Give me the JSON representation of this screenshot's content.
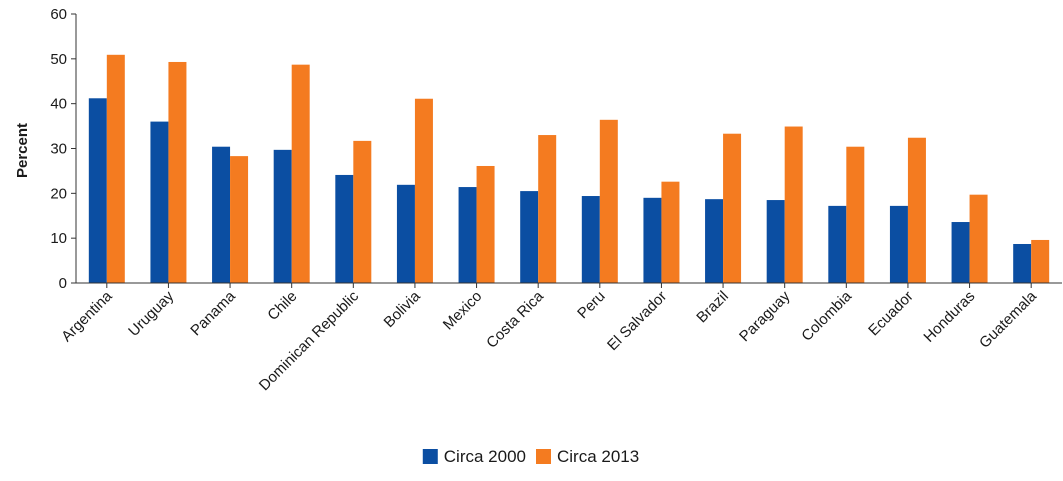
{
  "chart_data": {
    "type": "bar",
    "title": "",
    "xlabel": "",
    "ylabel": "Percent",
    "ylim": [
      0,
      60
    ],
    "yticks": [
      0,
      10,
      20,
      30,
      40,
      50,
      60
    ],
    "grid": false,
    "legend_position": "bottom",
    "categories": [
      "Argentina",
      "Uruguay",
      "Panama",
      "Chile",
      "Dominican Republic",
      "Bolivia",
      "Mexico",
      "Costa Rica",
      "Peru",
      "El Salvador",
      "Brazil",
      "Paraguay",
      "Colombia",
      "Ecuador",
      "Honduras",
      "Guatemala"
    ],
    "series": [
      {
        "name": "Circa 2000",
        "color": "#0b4ea2",
        "values": [
          41.2,
          36.0,
          30.4,
          29.7,
          24.1,
          21.9,
          21.4,
          20.5,
          19.4,
          19.0,
          18.7,
          18.5,
          17.2,
          17.2,
          13.6,
          8.7
        ]
      },
      {
        "name": "Circa 2013",
        "color": "#f47b20",
        "values": [
          50.9,
          49.3,
          28.3,
          48.7,
          31.7,
          41.1,
          26.1,
          33.0,
          36.4,
          22.6,
          33.3,
          34.9,
          30.4,
          32.4,
          19.7,
          9.6
        ]
      }
    ]
  }
}
